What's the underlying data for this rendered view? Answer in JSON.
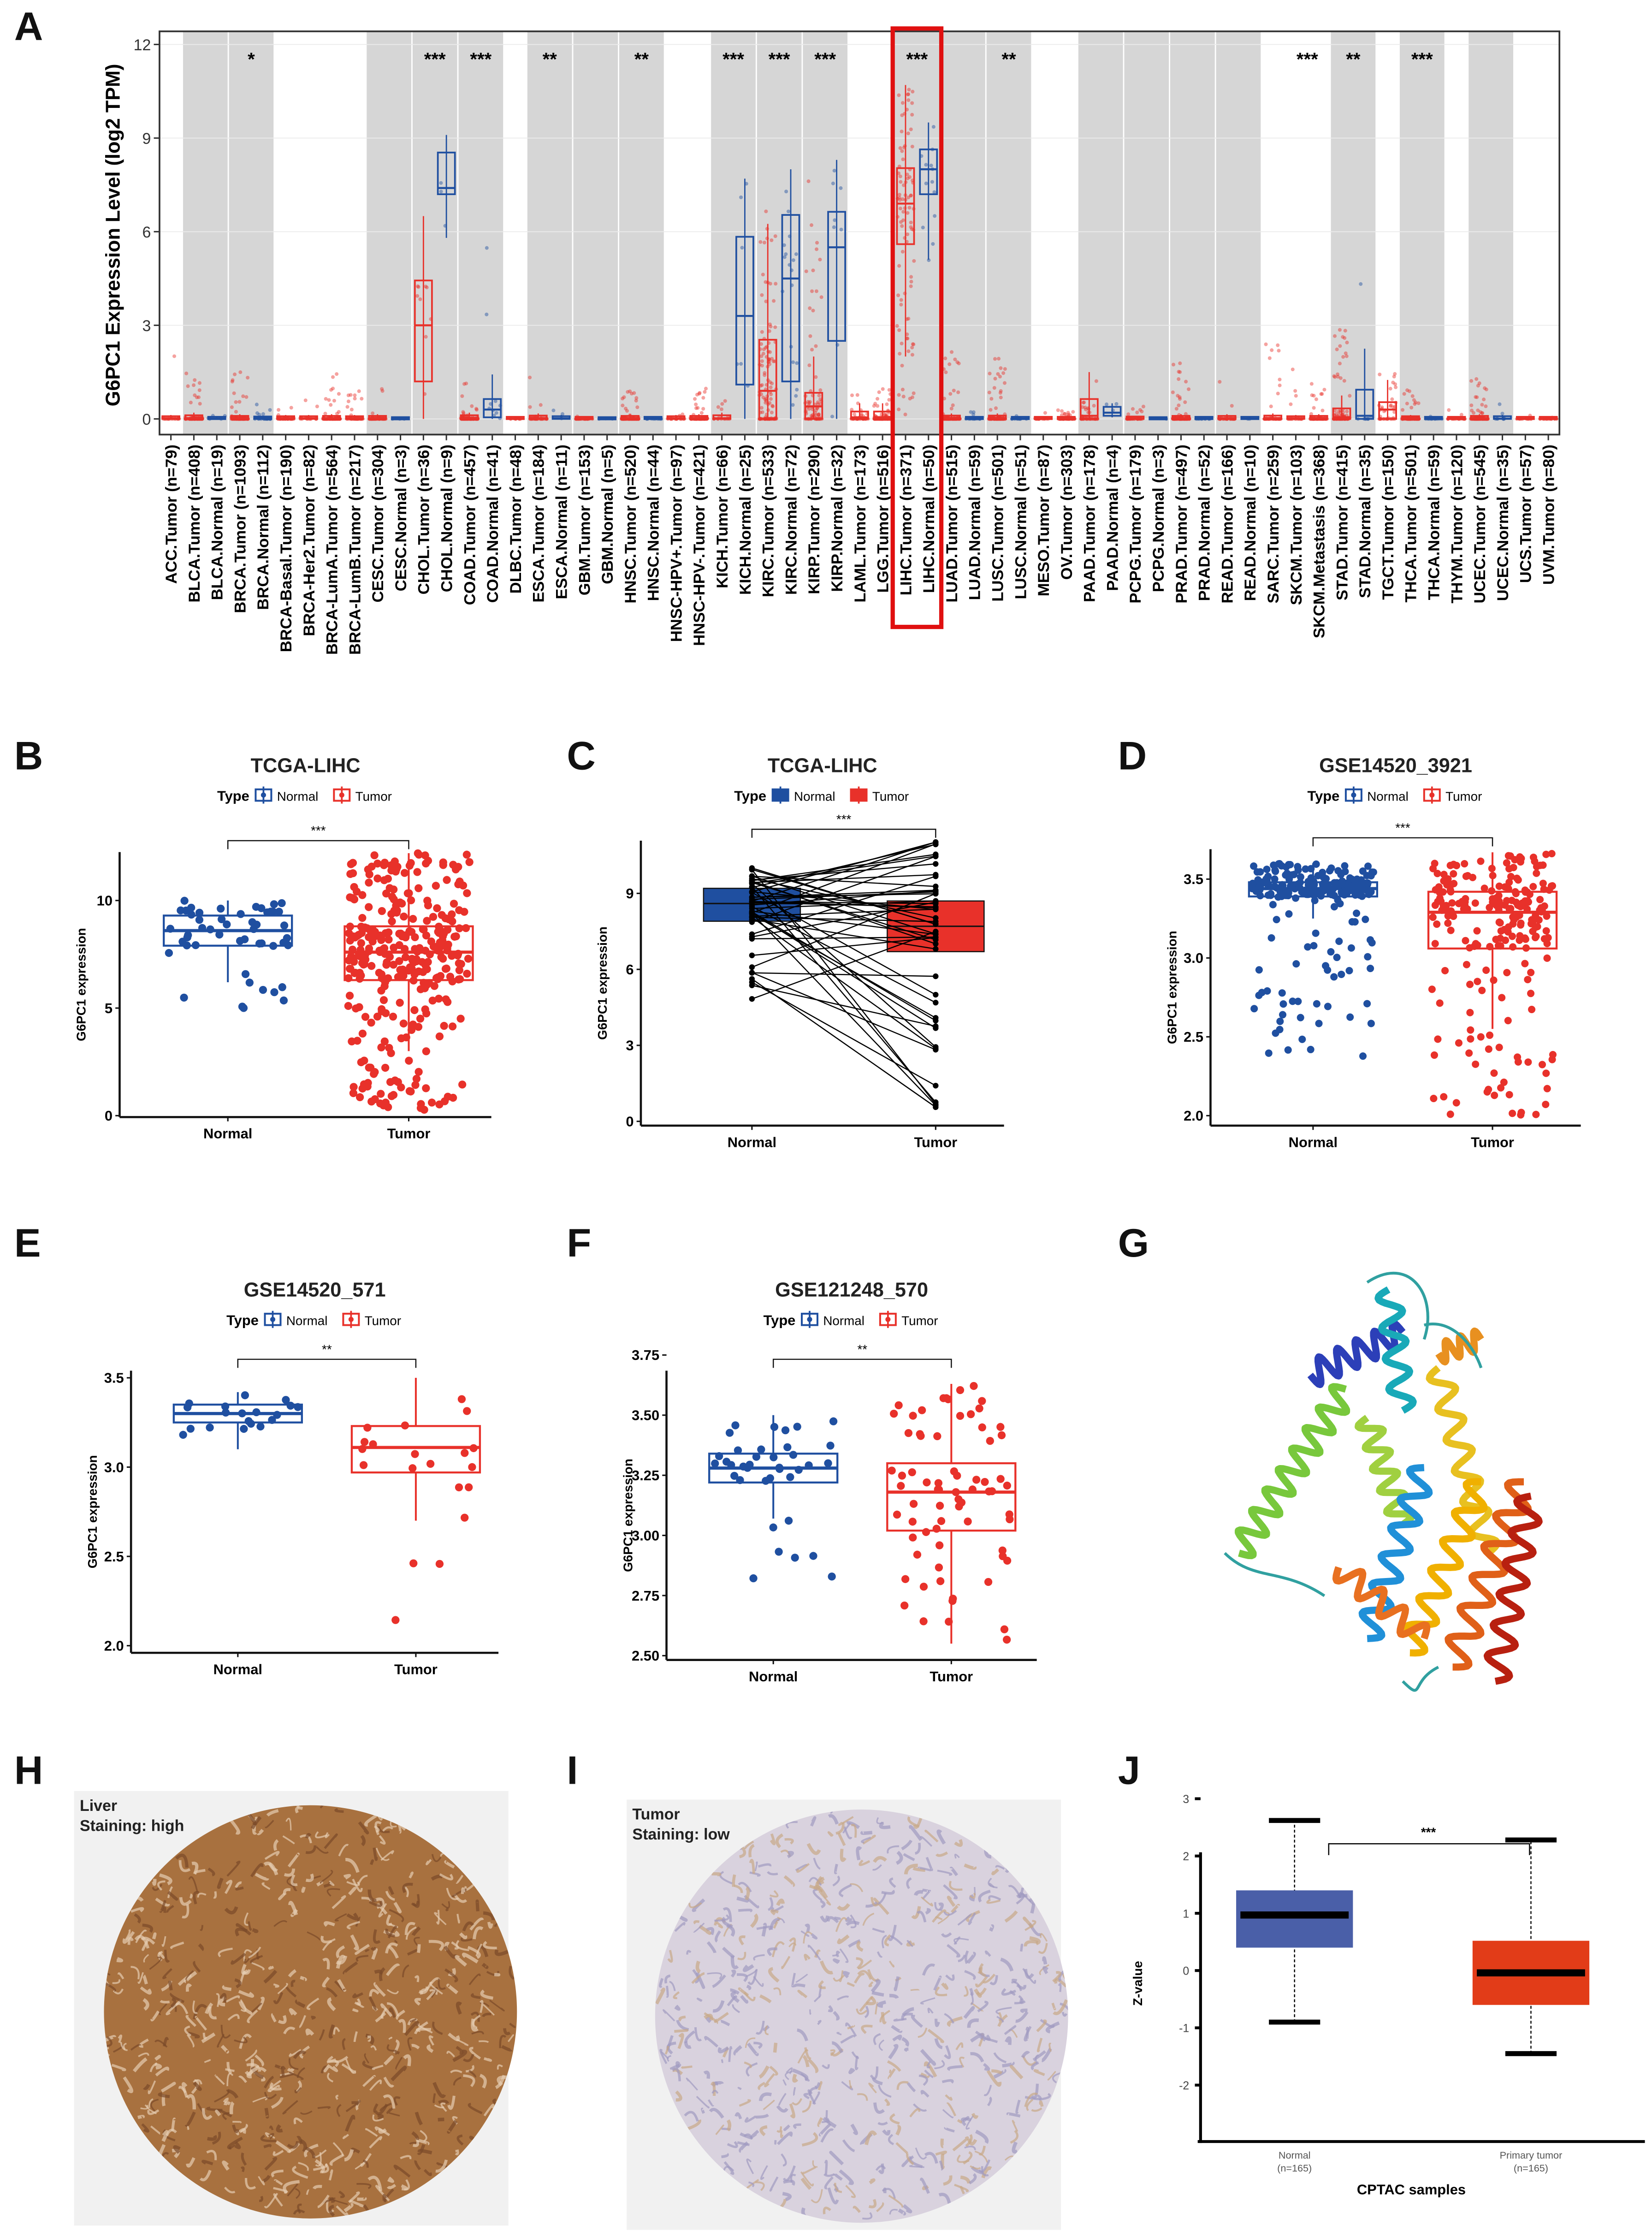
{
  "panel_letters": [
    "A",
    "B",
    "C",
    "D",
    "E",
    "F",
    "G",
    "H",
    "I",
    "J"
  ],
  "colors": {
    "tumor": "#e8312a",
    "normal": "#1f4fa0",
    "j_normal": "#4a5fa8",
    "j_tumor": "#e23c18",
    "highlight": "#e01010"
  },
  "chart_data": [
    {
      "type": "box",
      "ylabel": "G6PC1 Expression Level (log2 TPM)",
      "yticks": [
        0,
        3,
        6,
        9,
        12
      ],
      "ylim": [
        -0.5,
        12.4
      ],
      "highlight_group": "LIHC",
      "categories": [
        {
          "label": "ACC.Tumor (n=79)",
          "type": "Tumor",
          "stats": [
            0,
            0,
            0.02,
            0.05,
            2.5
          ]
        },
        {
          "label": "BLCA.Tumor (n=408)",
          "type": "Tumor",
          "stats": [
            0,
            0,
            0.02,
            0.08,
            1.7
          ]
        },
        {
          "label": "BLCA.Normal (n=19)",
          "type": "Normal",
          "stats": [
            0,
            0,
            0.01,
            0.03,
            0.3
          ]
        },
        {
          "label": "BRCA.Tumor (n=1093)",
          "type": "Tumor",
          "stats": [
            0,
            0,
            0.02,
            0.06,
            1.5
          ]
        },
        {
          "label": "BRCA.Normal (n=112)",
          "type": "Normal",
          "stats": [
            0,
            0,
            0.02,
            0.04,
            0.5
          ]
        },
        {
          "label": "BRCA-Basal.Tumor (n=190)",
          "type": "Tumor",
          "stats": [
            0,
            0,
            0.02,
            0.05,
            0.6
          ]
        },
        {
          "label": "BRCA-Her2.Tumor (n=82)",
          "type": "Tumor",
          "stats": [
            0,
            0,
            0.02,
            0.05,
            0.7
          ]
        },
        {
          "label": "BRCA-LumA.Tumor (n=564)",
          "type": "Tumor",
          "stats": [
            0,
            0,
            0.02,
            0.06,
            1.5
          ]
        },
        {
          "label": "BRCA-LumB.Tumor (n=217)",
          "type": "Tumor",
          "stats": [
            0,
            0,
            0.02,
            0.05,
            0.9
          ]
        },
        {
          "label": "CESC.Tumor (n=304)",
          "type": "Tumor",
          "stats": [
            0,
            0,
            0.02,
            0.06,
            1.3
          ]
        },
        {
          "label": "CESC.Normal (n=3)",
          "type": "Normal",
          "stats": [
            0,
            0,
            0.01,
            0.02,
            0.05
          ]
        },
        {
          "label": "CHOL.Tumor (n=36)",
          "type": "Tumor",
          "stats": [
            0,
            1.2,
            3.0,
            4.4,
            6.5
          ]
        },
        {
          "label": "CHOL.Normal (n=9)",
          "type": "Normal",
          "stats": [
            5.8,
            7.2,
            7.4,
            8.5,
            9.1
          ]
        },
        {
          "label": "COAD.Tumor (n=457)",
          "type": "Tumor",
          "stats": [
            0,
            0,
            0.02,
            0.08,
            1.2
          ]
        },
        {
          "label": "COAD.Normal (n=41)",
          "type": "Normal",
          "stats": [
            0,
            0.05,
            0.3,
            0.6,
            6.0
          ]
        },
        {
          "label": "DLBC.Tumor (n=48)",
          "type": "Tumor",
          "stats": [
            0,
            0,
            0.01,
            0.03,
            0.3
          ]
        },
        {
          "label": "ESCA.Tumor (n=184)",
          "type": "Tumor",
          "stats": [
            0,
            0,
            0.02,
            0.07,
            1.8
          ]
        },
        {
          "label": "ESCA.Normal (n=11)",
          "type": "Normal",
          "stats": [
            0,
            0,
            0.02,
            0.05,
            0.3
          ]
        },
        {
          "label": "GBM.Tumor (n=153)",
          "type": "Tumor",
          "stats": [
            0,
            0,
            0.01,
            0.03,
            0.4
          ]
        },
        {
          "label": "GBM.Normal (n=5)",
          "type": "Normal",
          "stats": [
            0,
            0,
            0.01,
            0.02,
            0.05
          ]
        },
        {
          "label": "HNSC.Tumor (n=520)",
          "type": "Tumor",
          "stats": [
            0,
            0,
            0.02,
            0.06,
            1.0
          ]
        },
        {
          "label": "HNSC.Normal (n=44)",
          "type": "Normal",
          "stats": [
            0,
            0,
            0.01,
            0.03,
            0.3
          ]
        },
        {
          "label": "HNSC-HPV+.Tumor (n=97)",
          "type": "Tumor",
          "stats": [
            0,
            0,
            0.02,
            0.05,
            0.8
          ]
        },
        {
          "label": "HNSC-HPV-.Tumor (n=421)",
          "type": "Tumor",
          "stats": [
            0,
            0,
            0.02,
            0.06,
            1.0
          ]
        },
        {
          "label": "KICH.Tumor (n=66)",
          "type": "Tumor",
          "stats": [
            0,
            0,
            0.02,
            0.08,
            1.0
          ]
        },
        {
          "label": "KICH.Normal (n=25)",
          "type": "Normal",
          "stats": [
            0,
            1.1,
            3.3,
            5.8,
            7.7
          ]
        },
        {
          "label": "KIRC.Tumor (n=533)",
          "type": "Tumor",
          "stats": [
            0,
            0,
            0.9,
            2.5,
            7.0
          ]
        },
        {
          "label": "KIRC.Normal (n=72)",
          "type": "Normal",
          "stats": [
            0,
            1.2,
            4.5,
            6.5,
            8.0
          ]
        },
        {
          "label": "KIRP.Tumor (n=290)",
          "type": "Tumor",
          "stats": [
            0,
            0,
            0.4,
            0.8,
            8.0
          ]
        },
        {
          "label": "KIRP.Normal (n=32)",
          "type": "Normal",
          "stats": [
            0,
            2.5,
            5.5,
            6.6,
            8.3
          ]
        },
        {
          "label": "LAML.Tumor (n=173)",
          "type": "Tumor",
          "stats": [
            0,
            0,
            0.05,
            0.2,
            0.9
          ]
        },
        {
          "label": "LGG.Tumor (n=516)",
          "type": "Tumor",
          "stats": [
            0,
            0,
            0.05,
            0.2,
            1.0
          ]
        },
        {
          "label": "LIHC.Tumor (n=371)",
          "type": "Tumor",
          "stats": [
            0,
            5.6,
            6.9,
            8.0,
            10.7
          ]
        },
        {
          "label": "LIHC.Normal (n=50)",
          "type": "Normal",
          "stats": [
            5.0,
            7.2,
            8.0,
            8.6,
            9.5
          ]
        },
        {
          "label": "LUAD.Tumor (n=515)",
          "type": "Tumor",
          "stats": [
            0,
            0,
            0.02,
            0.07,
            2.2
          ]
        },
        {
          "label": "LUAD.Normal (n=59)",
          "type": "Normal",
          "stats": [
            0,
            0,
            0.01,
            0.03,
            0.3
          ]
        },
        {
          "label": "LUSC.Tumor (n=501)",
          "type": "Tumor",
          "stats": [
            0,
            0,
            0.02,
            0.07,
            2.0
          ]
        },
        {
          "label": "LUSC.Normal (n=51)",
          "type": "Normal",
          "stats": [
            0,
            0,
            0.01,
            0.03,
            0.3
          ]
        },
        {
          "label": "MESO.Tumor (n=87)",
          "type": "Tumor",
          "stats": [
            0,
            0,
            0.01,
            0.03,
            0.3
          ]
        },
        {
          "label": "OV.Tumor (n=303)",
          "type": "Tumor",
          "stats": [
            0,
            0,
            0.01,
            0.03,
            0.3
          ]
        },
        {
          "label": "PAAD.Tumor (n=178)",
          "type": "Tumor",
          "stats": [
            0,
            0,
            0.1,
            0.6,
            4.0
          ]
        },
        {
          "label": "PAAD.Normal (n=4)",
          "type": "Normal",
          "stats": [
            0.05,
            0.1,
            0.2,
            0.35,
            0.5
          ]
        },
        {
          "label": "PCPG.Tumor (n=179)",
          "type": "Tumor",
          "stats": [
            0,
            0,
            0.01,
            0.04,
            0.4
          ]
        },
        {
          "label": "PCPG.Normal (n=3)",
          "type": "Normal",
          "stats": [
            0,
            0,
            0.01,
            0.02,
            0.05
          ]
        },
        {
          "label": "PRAD.Tumor (n=497)",
          "type": "Tumor",
          "stats": [
            0,
            0,
            0.02,
            0.06,
            2.0
          ]
        },
        {
          "label": "PRAD.Normal (n=52)",
          "type": "Normal",
          "stats": [
            0,
            0,
            0.01,
            0.03,
            0.3
          ]
        },
        {
          "label": "READ.Tumor (n=166)",
          "type": "Tumor",
          "stats": [
            0,
            0,
            0.02,
            0.06,
            1.5
          ]
        },
        {
          "label": "READ.Normal (n=10)",
          "type": "Normal",
          "stats": [
            0,
            0,
            0.01,
            0.03,
            0.2
          ]
        },
        {
          "label": "SARC.Tumor (n=259)",
          "type": "Tumor",
          "stats": [
            0,
            0,
            0.02,
            0.07,
            2.4
          ]
        },
        {
          "label": "SKCM.Tumor (n=103)",
          "type": "Tumor",
          "stats": [
            0,
            0,
            0.02,
            0.05,
            1.6
          ]
        },
        {
          "label": "SKCM.Metastasis (n=368)",
          "type": "Tumor",
          "stats": [
            0,
            0,
            0.02,
            0.06,
            1.2
          ]
        },
        {
          "label": "STAD.Tumor (n=415)",
          "type": "Tumor",
          "stats": [
            0,
            0,
            0.05,
            0.3,
            3.2
          ]
        },
        {
          "label": "STAD.Normal (n=35)",
          "type": "Normal",
          "stats": [
            0,
            0,
            0.1,
            0.9,
            6.2
          ]
        },
        {
          "label": "TGCT.Tumor (n=150)",
          "type": "Tumor",
          "stats": [
            0,
            0,
            0.3,
            0.5,
            1.5
          ]
        },
        {
          "label": "THCA.Tumor (n=501)",
          "type": "Tumor",
          "stats": [
            0,
            0,
            0.02,
            0.05,
            1.0
          ]
        },
        {
          "label": "THCA.Normal (n=59)",
          "type": "Normal",
          "stats": [
            0,
            0,
            0.01,
            0.03,
            0.3
          ]
        },
        {
          "label": "THYM.Tumor (n=120)",
          "type": "Tumor",
          "stats": [
            0,
            0,
            0.01,
            0.03,
            0.3
          ]
        },
        {
          "label": "UCEC.Tumor (n=545)",
          "type": "Tumor",
          "stats": [
            0,
            0,
            0.02,
            0.06,
            1.3
          ]
        },
        {
          "label": "UCEC.Normal (n=35)",
          "type": "Normal",
          "stats": [
            0,
            0,
            0.01,
            0.05,
            0.6
          ]
        },
        {
          "label": "UCS.Tumor (n=57)",
          "type": "Tumor",
          "stats": [
            0,
            0,
            0.01,
            0.03,
            0.3
          ]
        },
        {
          "label": "UVM.Tumor (n=80)",
          "type": "Tumor",
          "stats": [
            0,
            0,
            0.01,
            0.03,
            0.2
          ]
        }
      ],
      "significance": [
        {
          "group": "BRCA",
          "label": "*"
        },
        {
          "group": "CHOL",
          "label": "***"
        },
        {
          "group": "COAD",
          "label": "***"
        },
        {
          "group": "ESCA",
          "label": "**"
        },
        {
          "group": "HNSC",
          "label": "**"
        },
        {
          "group": "KICH",
          "label": "***"
        },
        {
          "group": "KIRC",
          "label": "***"
        },
        {
          "group": "KIRP",
          "label": "***"
        },
        {
          "group": "LIHC",
          "label": "***"
        },
        {
          "group": "LUSC",
          "label": "**"
        },
        {
          "group": "SKCM",
          "label": "***"
        },
        {
          "group": "STAD",
          "label": "**"
        },
        {
          "group": "THCA",
          "label": "***"
        }
      ]
    },
    {
      "type": "box",
      "title": "TCGA-LIHC",
      "legend_title": "Type",
      "legend": [
        "Normal",
        "Tumor"
      ],
      "ylabel": "G6PC1 expression",
      "yticks": [
        0,
        5,
        10
      ],
      "tick_labels": [
        "0",
        "5",
        "10"
      ],
      "significance": "***",
      "paired": false,
      "groups": [
        {
          "name": "Normal",
          "n": 50,
          "stats": [
            4.8,
            7.9,
            8.6,
            9.3,
            10.0
          ],
          "whiskers": [
            6.2,
            10.0
          ]
        },
        {
          "name": "Tumor",
          "n": 371,
          "stats": [
            0.1,
            6.3,
            7.6,
            8.8,
            12.2
          ],
          "whiskers": [
            3.0,
            12.2
          ]
        }
      ]
    },
    {
      "type": "box",
      "title": "TCGA-LIHC",
      "legend_title": "Type",
      "legend": [
        "Normal",
        "Tumor"
      ],
      "ylabel": "G6PC1 expression",
      "yticks": [
        0,
        3,
        6,
        9
      ],
      "tick_labels": [
        "0",
        "3",
        "6",
        "9"
      ],
      "significance": "***",
      "paired": true,
      "groups": [
        {
          "name": "Normal",
          "n": 50,
          "stats": [
            4.8,
            7.9,
            8.6,
            9.2,
            10.0
          ],
          "whiskers": [
            6.2,
            10.0
          ]
        },
        {
          "name": "Tumor",
          "n": 50,
          "stats": [
            0.3,
            6.7,
            7.7,
            8.7,
            11.2
          ],
          "whiskers": [
            3.5,
            11.2
          ]
        }
      ]
    },
    {
      "type": "box",
      "title": "GSE14520_3921",
      "legend_title": "Type",
      "legend": [
        "Normal",
        "Tumor"
      ],
      "ylabel": "G6PC1 expression",
      "yticks": [
        2.0,
        2.5,
        3.0,
        3.5
      ],
      "tick_labels": [
        "2.0",
        "2.5",
        "3.0",
        "3.5"
      ],
      "significance": "***",
      "paired": false,
      "groups": [
        {
          "name": "Normal",
          "n": 220,
          "stats": [
            2.37,
            3.39,
            3.44,
            3.48,
            3.6
          ],
          "whiskers": [
            3.25,
            3.6
          ]
        },
        {
          "name": "Tumor",
          "n": 225,
          "stats": [
            2.0,
            3.06,
            3.29,
            3.42,
            3.67
          ],
          "whiskers": [
            2.55,
            3.67
          ]
        }
      ]
    },
    {
      "type": "box",
      "title": "GSE14520_571",
      "legend_title": "Type",
      "legend": [
        "Normal",
        "Tumor"
      ],
      "ylabel": "G6PC1 expression",
      "yticks": [
        2.0,
        2.5,
        3.0,
        3.5
      ],
      "tick_labels": [
        "2.0",
        "2.5",
        "3.0",
        "3.5"
      ],
      "significance": "**",
      "paired": false,
      "groups": [
        {
          "name": "Normal",
          "n": 19,
          "stats": [
            3.15,
            3.25,
            3.3,
            3.35,
            3.42
          ],
          "whiskers": [
            3.1,
            3.42
          ]
        },
        {
          "name": "Tumor",
          "n": 20,
          "stats": [
            2.03,
            2.97,
            3.11,
            3.23,
            3.5
          ],
          "whiskers": [
            2.7,
            3.5
          ]
        }
      ]
    },
    {
      "type": "box",
      "title": "GSE121248_570",
      "legend_title": "Type",
      "legend": [
        "Normal",
        "Tumor"
      ],
      "ylabel": "G6PC1 expression",
      "yticks": [
        2.5,
        2.75,
        3.0,
        3.25,
        3.5,
        3.75
      ],
      "tick_labels": [
        "2.50",
        "2.75",
        "3.00",
        "3.25",
        "3.50",
        "3.75"
      ],
      "significance": "**",
      "paired": false,
      "groups": [
        {
          "name": "Normal",
          "n": 37,
          "stats": [
            2.75,
            3.22,
            3.28,
            3.34,
            3.5
          ],
          "whiskers": [
            3.07,
            3.5
          ]
        },
        {
          "name": "Tumor",
          "n": 70,
          "stats": [
            2.55,
            3.02,
            3.18,
            3.3,
            3.63
          ],
          "whiskers": [
            2.55,
            3.63
          ]
        }
      ]
    },
    {
      "type": "box",
      "xlabel": "CPTAC samples",
      "ylabel": "Z-value",
      "yticks": [
        -2,
        -1,
        0,
        1,
        2,
        3
      ],
      "tick_labels": [
        "-2",
        "-1",
        "0",
        "1",
        "2",
        "3"
      ],
      "significance": "***",
      "groups": [
        {
          "name": "Normal",
          "sub": "(n=165)",
          "q1": 0.4,
          "median": 0.97,
          "q3": 1.4,
          "whiskers": [
            -0.9,
            2.62
          ]
        },
        {
          "name": "Primary tumor",
          "sub": "(n=165)",
          "q1": -0.6,
          "median": -0.04,
          "q3": 0.52,
          "whiskers": [
            -1.45,
            2.28
          ]
        }
      ]
    }
  ],
  "images": {
    "H": {
      "line1": "Liver",
      "line2": "Staining: high"
    },
    "I": {
      "line1": "Tumor",
      "line2": "Staining: low"
    }
  }
}
